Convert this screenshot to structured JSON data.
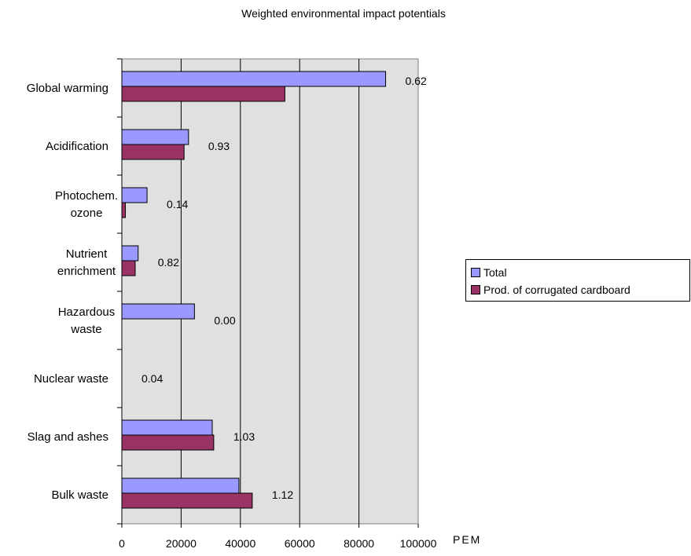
{
  "chart_data": {
    "type": "bar",
    "orientation": "horizontal",
    "title": "Weighted environmental impact potentials",
    "xlabel": "PEM",
    "ylabel": "",
    "xlim": [
      0,
      100000
    ],
    "xticks": [
      "0",
      "20000",
      "40000",
      "60000",
      "80000",
      "100000"
    ],
    "grid": true,
    "legend_position": "right",
    "categories": [
      [
        "Global warming"
      ],
      [
        "Acidification"
      ],
      [
        "Photochem.",
        "ozone"
      ],
      [
        "Nutrient",
        "enrichment"
      ],
      [
        "Hazardous",
        "waste"
      ],
      [
        "Nuclear waste"
      ],
      [
        "Slag and ashes"
      ],
      [
        "Bulk waste"
      ]
    ],
    "series": [
      {
        "name": "Total",
        "color": "#9999ff",
        "values": [
          89000,
          22500,
          8500,
          5500,
          24500,
          0,
          30500,
          39500
        ]
      },
      {
        "name": "Prod. of corrugated cardboard",
        "color": "#993366",
        "values": [
          55000,
          21000,
          1200,
          4500,
          0,
          0,
          31000,
          44000
        ]
      }
    ],
    "annotations": [
      "0.62",
      "0.93",
      "0.14",
      "0.82",
      "0.00",
      "0.04",
      "1.03",
      "1.12"
    ]
  }
}
